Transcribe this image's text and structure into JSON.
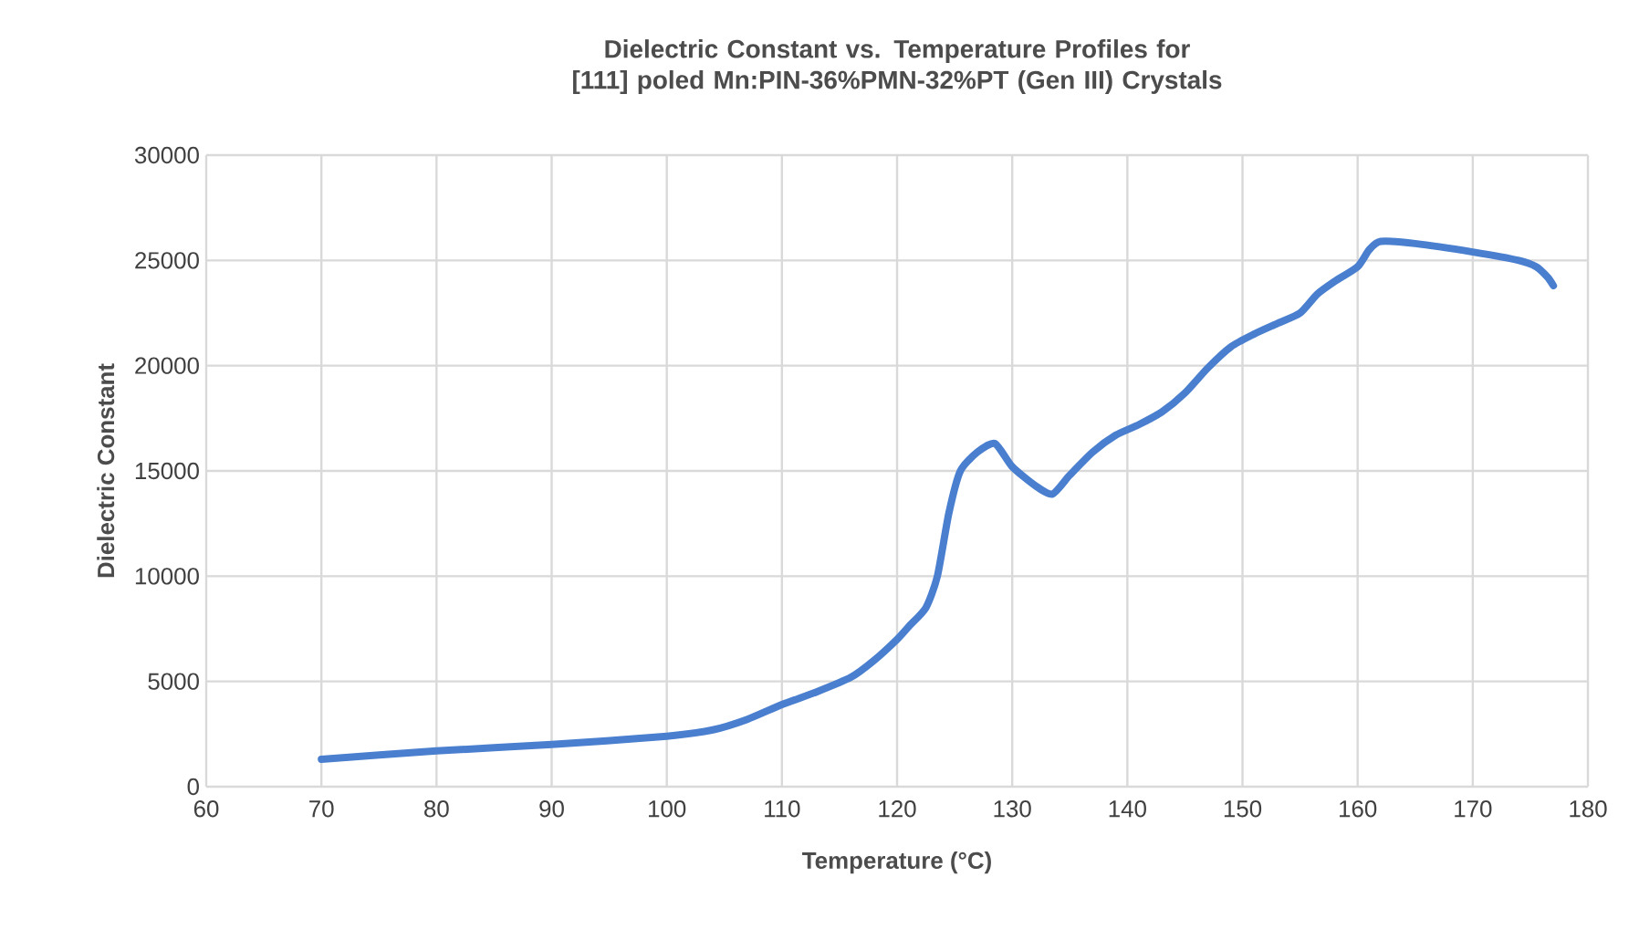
{
  "chart_data": {
    "type": "line",
    "title": "Dielectric Constant vs. Temperature Profiles for [111] poled Mn:PIN-36%PMN-32%PT (Gen III) Crystals",
    "xlabel": "Temperature (°C)",
    "ylabel": "Dielectric Constant",
    "x": [
      70,
      80,
      90,
      100,
      104,
      107,
      110,
      113,
      116,
      118,
      120,
      121,
      122.5,
      123.5,
      124.5,
      125.5,
      127,
      128.5,
      130,
      132,
      133.5,
      135,
      137,
      139,
      141,
      143,
      145,
      147,
      149,
      151,
      153,
      155,
      156.5,
      158,
      160,
      161,
      162,
      165,
      170,
      174,
      175.5,
      176.5,
      177
    ],
    "series": [
      {
        "color": "#4a7fcf",
        "values": [
          1300,
          1700,
          2000,
          2400,
          2700,
          3200,
          3900,
          4500,
          5200,
          6000,
          7000,
          7600,
          8500,
          10000,
          13000,
          15000,
          15900,
          16300,
          15200,
          14300,
          13900,
          14800,
          15900,
          16700,
          17200,
          17800,
          18700,
          19900,
          20900,
          21500,
          22000,
          22500,
          23400,
          24000,
          24700,
          25500,
          25900,
          25800,
          25400,
          25000,
          24700,
          24200,
          23800
        ]
      }
    ],
    "xlim": [
      60,
      180
    ],
    "xticks": [
      60,
      70,
      80,
      90,
      100,
      110,
      120,
      130,
      140,
      150,
      160,
      170,
      180
    ],
    "ylim": [
      0,
      30000
    ],
    "yticks": [
      0,
      5000,
      10000,
      15000,
      20000,
      25000,
      30000
    ],
    "grid": true,
    "marker": "none",
    "line_style": "solid"
  }
}
